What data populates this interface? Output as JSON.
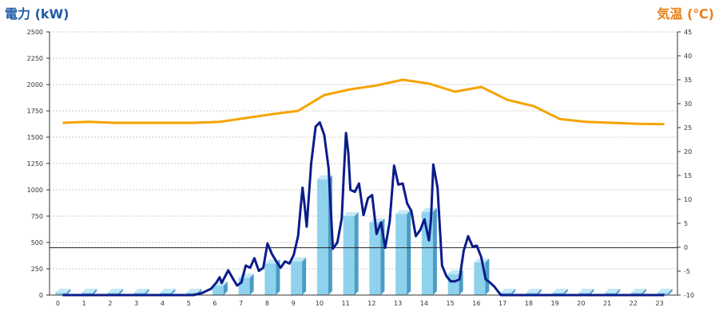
{
  "chart_data": {
    "type": "bar+line",
    "left_axis_label": "電力 (kW)",
    "right_axis_label": "気温 (℃)",
    "left_ylim": [
      0,
      2500
    ],
    "left_ticks": [
      "0",
      "250",
      "500",
      "750",
      "1000",
      "1250",
      "1500",
      "1750",
      "2000",
      "2250",
      "2500"
    ],
    "right_ylim": [
      -10,
      45
    ],
    "right_ticks": [
      "-10",
      "-5",
      "0",
      "5",
      "10",
      "15",
      "20",
      "25",
      "30",
      "35",
      "40",
      "45"
    ],
    "categories": [
      "0",
      "1",
      "2",
      "3",
      "4",
      "5",
      "6",
      "7",
      "8",
      "9",
      "10",
      "11",
      "12",
      "13",
      "14",
      "15",
      "16",
      "17",
      "18",
      "19",
      "20",
      "21",
      "22",
      "23"
    ],
    "grid": true,
    "reference_line": 450,
    "colors": {
      "bar": "#8ED2EE",
      "bar_side": "#4A9CC4",
      "bar_top": "#C4E8F7",
      "power_line": "#0B1C8A",
      "temp_line": "#F5A300",
      "left_label": "#1E5BA8",
      "right_label": "#E87F1A"
    },
    "series": [
      {
        "type": "bar",
        "axis": "left",
        "values": [
          0,
          0,
          0,
          0,
          0,
          0,
          90,
          165,
          300,
          320,
          1100,
          750,
          690,
          770,
          790,
          200,
          310,
          0,
          0,
          0,
          0,
          0,
          0,
          0
        ]
      },
      {
        "type": "line",
        "axis": "left",
        "points": [
          [
            0,
            0
          ],
          [
            1,
            0
          ],
          [
            2,
            0
          ],
          [
            3,
            0
          ],
          [
            4,
            0
          ],
          [
            5,
            0
          ],
          [
            5.33,
            20
          ],
          [
            5.67,
            60
          ],
          [
            5.88,
            120
          ],
          [
            6,
            170
          ],
          [
            6.08,
            115
          ],
          [
            6.33,
            235
          ],
          [
            6.5,
            160
          ],
          [
            6.67,
            90
          ],
          [
            6.83,
            120
          ],
          [
            7,
            280
          ],
          [
            7.17,
            260
          ],
          [
            7.33,
            350
          ],
          [
            7.5,
            230
          ],
          [
            7.67,
            260
          ],
          [
            7.83,
            490
          ],
          [
            8,
            390
          ],
          [
            8.17,
            320
          ],
          [
            8.33,
            260
          ],
          [
            8.5,
            320
          ],
          [
            8.67,
            300
          ],
          [
            8.83,
            380
          ],
          [
            9,
            560
          ],
          [
            9.08,
            780
          ],
          [
            9.17,
            1020
          ],
          [
            9.25,
            850
          ],
          [
            9.33,
            650
          ],
          [
            9.5,
            1250
          ],
          [
            9.67,
            1600
          ],
          [
            9.83,
            1640
          ],
          [
            10,
            1520
          ],
          [
            10.17,
            1200
          ],
          [
            10.33,
            440
          ],
          [
            10.5,
            500
          ],
          [
            10.67,
            730
          ],
          [
            10.75,
            1150
          ],
          [
            10.83,
            1540
          ],
          [
            10.92,
            1350
          ],
          [
            11,
            1000
          ],
          [
            11.17,
            980
          ],
          [
            11.33,
            1060
          ],
          [
            11.5,
            760
          ],
          [
            11.67,
            920
          ],
          [
            11.83,
            950
          ],
          [
            12,
            580
          ],
          [
            12.17,
            690
          ],
          [
            12.33,
            450
          ],
          [
            12.5,
            700
          ],
          [
            12.67,
            1230
          ],
          [
            12.83,
            1050
          ],
          [
            13,
            1060
          ],
          [
            13.17,
            870
          ],
          [
            13.33,
            800
          ],
          [
            13.5,
            560
          ],
          [
            13.67,
            620
          ],
          [
            13.83,
            720
          ],
          [
            14,
            520
          ],
          [
            14.08,
            720
          ],
          [
            14.17,
            1240
          ],
          [
            14.33,
            1020
          ],
          [
            14.5,
            280
          ],
          [
            14.67,
            180
          ],
          [
            14.83,
            130
          ],
          [
            15,
            130
          ],
          [
            15.17,
            150
          ],
          [
            15.33,
            420
          ],
          [
            15.5,
            560
          ],
          [
            15.67,
            460
          ],
          [
            15.83,
            470
          ],
          [
            16,
            360
          ],
          [
            16.17,
            150
          ],
          [
            16.33,
            120
          ],
          [
            16.5,
            80
          ],
          [
            16.75,
            0
          ],
          [
            17,
            0
          ],
          [
            18,
            0
          ],
          [
            19,
            0
          ],
          [
            20,
            0
          ],
          [
            21,
            0
          ],
          [
            22,
            0
          ],
          [
            23,
            0
          ]
        ]
      },
      {
        "type": "line",
        "axis": "right",
        "values": [
          26,
          26.2,
          26,
          26,
          26,
          26,
          26.2,
          27,
          27.8,
          28.5,
          31.8,
          33,
          33.8,
          35,
          34.2,
          32.5,
          33.5,
          30.8,
          29.5,
          26.8,
          26.2,
          26,
          25.8,
          25.7
        ]
      }
    ]
  }
}
